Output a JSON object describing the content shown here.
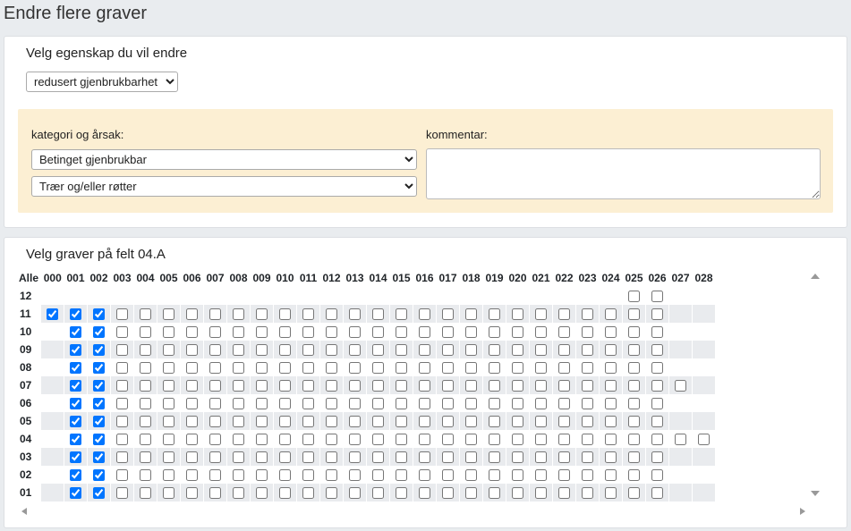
{
  "header": {
    "title": "Endre flere graver"
  },
  "property": {
    "label": "Velg egenskap du vil endre",
    "selected": "redusert gjenbrukbarhet"
  },
  "reason": {
    "label": "kategori og årsak:",
    "category": "Betinget gjenbrukbar",
    "cause": "Trær og/eller røtter"
  },
  "comment": {
    "label": "kommentar:"
  },
  "graves": {
    "title": "Velg graver på felt 04.A",
    "corner": "Alle",
    "columns": [
      "000",
      "001",
      "002",
      "003",
      "004",
      "005",
      "006",
      "007",
      "008",
      "009",
      "010",
      "011",
      "012",
      "013",
      "014",
      "015",
      "016",
      "017",
      "018",
      "019",
      "020",
      "021",
      "022",
      "023",
      "024",
      "025",
      "026",
      "027",
      "028"
    ],
    "rows": [
      {
        "label": "12",
        "cells": [
          null,
          null,
          null,
          null,
          null,
          null,
          null,
          null,
          null,
          null,
          null,
          null,
          null,
          null,
          null,
          null,
          null,
          null,
          null,
          null,
          null,
          null,
          null,
          null,
          null,
          false,
          false,
          null,
          null
        ]
      },
      {
        "label": "11",
        "cells": [
          true,
          true,
          true,
          false,
          false,
          false,
          false,
          false,
          false,
          false,
          false,
          false,
          false,
          false,
          false,
          false,
          false,
          false,
          false,
          false,
          false,
          false,
          false,
          false,
          false,
          false,
          false,
          null,
          null
        ]
      },
      {
        "label": "10",
        "cells": [
          null,
          true,
          true,
          false,
          false,
          false,
          false,
          false,
          false,
          false,
          false,
          false,
          false,
          false,
          false,
          false,
          false,
          false,
          false,
          false,
          false,
          false,
          false,
          false,
          false,
          false,
          false,
          null,
          null
        ]
      },
      {
        "label": "09",
        "cells": [
          null,
          true,
          true,
          false,
          false,
          false,
          false,
          false,
          false,
          false,
          false,
          false,
          false,
          false,
          false,
          false,
          false,
          false,
          false,
          false,
          false,
          false,
          false,
          false,
          false,
          false,
          false,
          null,
          null
        ]
      },
      {
        "label": "08",
        "cells": [
          null,
          true,
          true,
          false,
          false,
          false,
          false,
          false,
          false,
          false,
          false,
          false,
          false,
          false,
          false,
          false,
          false,
          false,
          false,
          false,
          false,
          false,
          false,
          false,
          false,
          false,
          false,
          null,
          null
        ]
      },
      {
        "label": "07",
        "cells": [
          null,
          true,
          true,
          false,
          false,
          false,
          false,
          false,
          false,
          false,
          false,
          false,
          false,
          false,
          false,
          false,
          false,
          false,
          false,
          false,
          false,
          false,
          false,
          false,
          false,
          false,
          false,
          false,
          null
        ]
      },
      {
        "label": "06",
        "cells": [
          null,
          true,
          true,
          false,
          false,
          false,
          false,
          false,
          false,
          false,
          false,
          false,
          false,
          false,
          false,
          false,
          false,
          false,
          false,
          false,
          false,
          false,
          false,
          false,
          false,
          false,
          false,
          null,
          null
        ]
      },
      {
        "label": "05",
        "cells": [
          null,
          true,
          true,
          false,
          false,
          false,
          false,
          false,
          false,
          false,
          false,
          false,
          false,
          false,
          false,
          false,
          false,
          false,
          false,
          false,
          false,
          false,
          false,
          false,
          false,
          false,
          false,
          null,
          null
        ]
      },
      {
        "label": "04",
        "cells": [
          null,
          true,
          true,
          false,
          false,
          false,
          false,
          false,
          false,
          false,
          false,
          false,
          false,
          false,
          false,
          false,
          false,
          false,
          false,
          false,
          false,
          false,
          false,
          false,
          false,
          false,
          false,
          false,
          false
        ]
      },
      {
        "label": "03",
        "cells": [
          null,
          true,
          true,
          false,
          false,
          false,
          false,
          false,
          false,
          false,
          false,
          false,
          false,
          false,
          false,
          false,
          false,
          false,
          false,
          false,
          false,
          false,
          false,
          false,
          false,
          false,
          false,
          null,
          null
        ]
      },
      {
        "label": "02",
        "cells": [
          null,
          true,
          true,
          false,
          false,
          false,
          false,
          false,
          false,
          false,
          false,
          false,
          false,
          false,
          false,
          false,
          false,
          false,
          false,
          false,
          false,
          false,
          false,
          false,
          false,
          false,
          false,
          null,
          null
        ]
      },
      {
        "label": "01",
        "cells": [
          null,
          true,
          true,
          false,
          false,
          false,
          false,
          false,
          false,
          false,
          false,
          false,
          false,
          false,
          false,
          false,
          false,
          false,
          false,
          false,
          false,
          false,
          false,
          false,
          false,
          false,
          false,
          null,
          null
        ]
      }
    ]
  }
}
